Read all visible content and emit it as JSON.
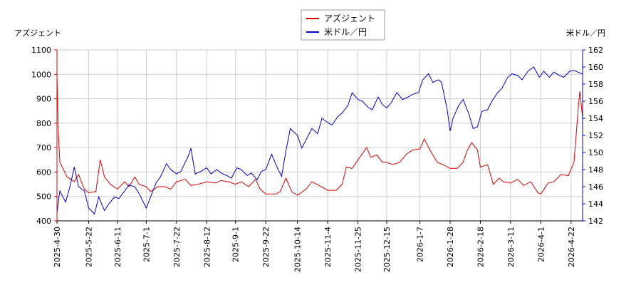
{
  "chart_data": {
    "type": "line",
    "left_axis_label": "アズジェント",
    "right_axis_label": "米ドル／円",
    "grid": true,
    "legend_position": "top-center",
    "x_start": "2025-04-30",
    "x_end": "2026-04-30",
    "x_tick_labels": [
      "2025-4-30",
      "2025-5-22",
      "2025-6-11",
      "2025-7-1",
      "2025-7-22",
      "2025-8-12",
      "2025-9-1",
      "2025-9-22",
      "2025-10-14",
      "2025-11-4",
      "2025-11-25",
      "2025-12-15",
      "2026-1-7",
      "2026-1-28",
      "2026-2-18",
      "2026-3-11",
      "2026-4-1",
      "2026-4-22"
    ],
    "y_left": {
      "min": 400,
      "max": 1100,
      "ticks": [
        400,
        500,
        600,
        700,
        800,
        900,
        1000,
        1100
      ]
    },
    "y_right": {
      "min": 142,
      "max": 162,
      "ticks": [
        142,
        144,
        146,
        148,
        150,
        152,
        154,
        156,
        158,
        160,
        162
      ]
    },
    "series": [
      {
        "name": "アズジェント",
        "color": "#dd0000",
        "axis": "left",
        "points": [
          [
            "2025-04-30",
            990
          ],
          [
            "2025-05-01",
            760
          ],
          [
            "2025-05-02",
            640
          ],
          [
            "2025-05-07",
            580
          ],
          [
            "2025-05-12",
            560
          ],
          [
            "2025-05-15",
            590
          ],
          [
            "2025-05-19",
            530
          ],
          [
            "2025-05-22",
            515
          ],
          [
            "2025-05-27",
            520
          ],
          [
            "2025-05-30",
            650
          ],
          [
            "2025-06-02",
            580
          ],
          [
            "2025-06-06",
            550
          ],
          [
            "2025-06-11",
            530
          ],
          [
            "2025-06-16",
            560
          ],
          [
            "2025-06-19",
            540
          ],
          [
            "2025-06-23",
            580
          ],
          [
            "2025-06-26",
            550
          ],
          [
            "2025-07-01",
            540
          ],
          [
            "2025-07-04",
            520
          ],
          [
            "2025-07-09",
            540
          ],
          [
            "2025-07-14",
            540
          ],
          [
            "2025-07-18",
            530
          ],
          [
            "2025-07-22",
            560
          ],
          [
            "2025-07-28",
            570
          ],
          [
            "2025-08-01",
            545
          ],
          [
            "2025-08-06",
            550
          ],
          [
            "2025-08-12",
            560
          ],
          [
            "2025-08-18",
            555
          ],
          [
            "2025-08-22",
            565
          ],
          [
            "2025-08-27",
            560
          ],
          [
            "2025-09-01",
            550
          ],
          [
            "2025-09-05",
            560
          ],
          [
            "2025-09-10",
            540
          ],
          [
            "2025-09-15",
            570
          ],
          [
            "2025-09-18",
            530
          ],
          [
            "2025-09-22",
            510
          ],
          [
            "2025-09-29",
            510
          ],
          [
            "2025-10-02",
            520
          ],
          [
            "2025-10-06",
            575
          ],
          [
            "2025-10-10",
            520
          ],
          [
            "2025-10-14",
            505
          ],
          [
            "2025-10-20",
            530
          ],
          [
            "2025-10-24",
            560
          ],
          [
            "2025-10-29",
            545
          ],
          [
            "2025-11-04",
            525
          ],
          [
            "2025-11-10",
            525
          ],
          [
            "2025-11-14",
            550
          ],
          [
            "2025-11-17",
            620
          ],
          [
            "2025-11-21",
            615
          ],
          [
            "2025-11-25",
            650
          ],
          [
            "2025-12-01",
            700
          ],
          [
            "2025-12-04",
            660
          ],
          [
            "2025-12-08",
            670
          ],
          [
            "2025-12-12",
            640
          ],
          [
            "2025-12-15",
            640
          ],
          [
            "2025-12-19",
            630
          ],
          [
            "2025-12-24",
            640
          ],
          [
            "2025-12-29",
            675
          ],
          [
            "2026-01-02",
            690
          ],
          [
            "2026-01-07",
            695
          ],
          [
            "2026-01-10",
            735
          ],
          [
            "2026-01-14",
            690
          ],
          [
            "2026-01-19",
            640
          ],
          [
            "2026-01-23",
            630
          ],
          [
            "2026-01-28",
            615
          ],
          [
            "2026-02-02",
            615
          ],
          [
            "2026-02-06",
            640
          ],
          [
            "2026-02-09",
            690
          ],
          [
            "2026-02-12",
            720
          ],
          [
            "2026-02-16",
            690
          ],
          [
            "2026-02-18",
            620
          ],
          [
            "2026-02-23",
            630
          ],
          [
            "2026-02-27",
            550
          ],
          [
            "2026-03-03",
            575
          ],
          [
            "2026-03-06",
            560
          ],
          [
            "2026-03-11",
            555
          ],
          [
            "2026-03-16",
            570
          ],
          [
            "2026-03-20",
            545
          ],
          [
            "2026-03-25",
            560
          ],
          [
            "2026-03-30",
            515
          ],
          [
            "2026-04-01",
            510
          ],
          [
            "2026-04-06",
            555
          ],
          [
            "2026-04-10",
            560
          ],
          [
            "2026-04-15",
            590
          ],
          [
            "2026-04-20",
            585
          ],
          [
            "2026-04-24",
            640
          ],
          [
            "2026-04-27",
            860
          ],
          [
            "2026-04-28",
            930
          ],
          [
            "2026-04-29",
            880
          ],
          [
            "2026-04-30",
            820
          ]
        ]
      },
      {
        "name": "米ドル／円",
        "color": "#0000cc",
        "axis": "right",
        "points": [
          [
            "2025-04-30",
            143.0
          ],
          [
            "2025-05-02",
            145.5
          ],
          [
            "2025-05-06",
            144.2
          ],
          [
            "2025-05-09",
            146.0
          ],
          [
            "2025-05-12",
            148.3
          ],
          [
            "2025-05-15",
            146.0
          ],
          [
            "2025-05-19",
            145.5
          ],
          [
            "2025-05-22",
            143.5
          ],
          [
            "2025-05-26",
            142.8
          ],
          [
            "2025-05-29",
            144.8
          ],
          [
            "2025-06-02",
            143.2
          ],
          [
            "2025-06-05",
            144.0
          ],
          [
            "2025-06-09",
            144.8
          ],
          [
            "2025-06-12",
            144.6
          ],
          [
            "2025-06-16",
            145.5
          ],
          [
            "2025-06-19",
            146.2
          ],
          [
            "2025-06-23",
            146.0
          ],
          [
            "2025-06-26",
            145.2
          ],
          [
            "2025-07-01",
            143.5
          ],
          [
            "2025-07-04",
            144.8
          ],
          [
            "2025-07-08",
            146.5
          ],
          [
            "2025-07-11",
            147.2
          ],
          [
            "2025-07-15",
            148.7
          ],
          [
            "2025-07-18",
            148.0
          ],
          [
            "2025-07-22",
            147.5
          ],
          [
            "2025-07-25",
            147.8
          ],
          [
            "2025-07-30",
            149.5
          ],
          [
            "2025-08-01",
            150.5
          ],
          [
            "2025-08-04",
            147.5
          ],
          [
            "2025-08-08",
            147.8
          ],
          [
            "2025-08-12",
            148.2
          ],
          [
            "2025-08-15",
            147.5
          ],
          [
            "2025-08-19",
            148.0
          ],
          [
            "2025-08-22",
            147.6
          ],
          [
            "2025-08-26",
            147.3
          ],
          [
            "2025-08-29",
            147.0
          ],
          [
            "2025-09-02",
            148.2
          ],
          [
            "2025-09-05",
            148.0
          ],
          [
            "2025-09-09",
            147.3
          ],
          [
            "2025-09-12",
            147.6
          ],
          [
            "2025-09-16",
            146.8
          ],
          [
            "2025-09-19",
            147.8
          ],
          [
            "2025-09-22",
            148.0
          ],
          [
            "2025-09-26",
            149.8
          ],
          [
            "2025-09-30",
            148.2
          ],
          [
            "2025-10-03",
            147.2
          ],
          [
            "2025-10-06",
            150.2
          ],
          [
            "2025-10-09",
            152.8
          ],
          [
            "2025-10-14",
            152.0
          ],
          [
            "2025-10-17",
            150.5
          ],
          [
            "2025-10-21",
            151.8
          ],
          [
            "2025-10-24",
            152.8
          ],
          [
            "2025-10-28",
            152.2
          ],
          [
            "2025-10-31",
            154.0
          ],
          [
            "2025-11-04",
            153.5
          ],
          [
            "2025-11-07",
            153.2
          ],
          [
            "2025-11-11",
            154.2
          ],
          [
            "2025-11-14",
            154.6
          ],
          [
            "2025-11-18",
            155.5
          ],
          [
            "2025-11-21",
            157.0
          ],
          [
            "2025-11-25",
            156.2
          ],
          [
            "2025-11-28",
            156.0
          ],
          [
            "2025-12-02",
            155.3
          ],
          [
            "2025-12-05",
            155.0
          ],
          [
            "2025-12-09",
            156.5
          ],
          [
            "2025-12-12",
            155.6
          ],
          [
            "2025-12-15",
            155.2
          ],
          [
            "2025-12-18",
            155.8
          ],
          [
            "2025-12-22",
            157.0
          ],
          [
            "2025-12-26",
            156.2
          ],
          [
            "2025-12-30",
            156.5
          ],
          [
            "2026-01-02",
            156.8
          ],
          [
            "2026-01-06",
            157.0
          ],
          [
            "2026-01-09",
            158.5
          ],
          [
            "2026-01-13",
            159.2
          ],
          [
            "2026-01-16",
            158.2
          ],
          [
            "2026-01-20",
            158.5
          ],
          [
            "2026-01-22",
            158.2
          ],
          [
            "2026-01-26",
            155.0
          ],
          [
            "2026-01-28",
            152.5
          ],
          [
            "2026-01-30",
            154.0
          ],
          [
            "2026-02-03",
            155.5
          ],
          [
            "2026-02-06",
            156.2
          ],
          [
            "2026-02-10",
            154.5
          ],
          [
            "2026-02-13",
            152.8
          ],
          [
            "2026-02-16",
            153.0
          ],
          [
            "2026-02-19",
            154.8
          ],
          [
            "2026-02-23",
            155.0
          ],
          [
            "2026-02-26",
            156.0
          ],
          [
            "2026-03-02",
            157.0
          ],
          [
            "2026-03-05",
            157.5
          ],
          [
            "2026-03-09",
            158.8
          ],
          [
            "2026-03-12",
            159.2
          ],
          [
            "2026-03-16",
            159.0
          ],
          [
            "2026-03-19",
            158.5
          ],
          [
            "2026-03-23",
            159.5
          ],
          [
            "2026-03-27",
            160.0
          ],
          [
            "2026-03-31",
            158.8
          ],
          [
            "2026-04-03",
            159.5
          ],
          [
            "2026-04-07",
            158.8
          ],
          [
            "2026-04-10",
            159.4
          ],
          [
            "2026-04-14",
            159.0
          ],
          [
            "2026-04-17",
            158.8
          ],
          [
            "2026-04-21",
            159.5
          ],
          [
            "2026-04-24",
            159.6
          ],
          [
            "2026-04-28",
            159.3
          ],
          [
            "2026-04-30",
            159.2
          ]
        ]
      }
    ]
  }
}
